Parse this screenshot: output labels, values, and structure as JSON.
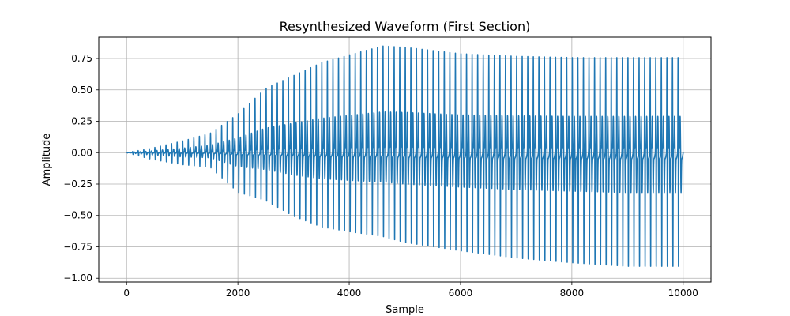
{
  "chart_data": {
    "type": "line",
    "title": "Resynthesized Waveform (First Section)",
    "xlabel": "Sample",
    "ylabel": "Amplitude",
    "xlim": [
      -500,
      10500
    ],
    "ylim": [
      -1.03,
      0.92
    ],
    "x_ticks": [
      0,
      2000,
      4000,
      6000,
      8000,
      10000
    ],
    "x_tick_labels": [
      "0",
      "2000",
      "4000",
      "6000",
      "8000",
      "10000"
    ],
    "y_ticks": [
      0.75,
      0.5,
      0.25,
      0.0,
      -0.25,
      -0.5,
      -0.75,
      -1.0
    ],
    "y_tick_labels": [
      "0.75",
      "0.50",
      "0.25",
      "0.00",
      "−0.25",
      "−0.50",
      "−0.75",
      "−1.00"
    ],
    "grid": true,
    "series": [
      {
        "color": "#1f77b4",
        "description": "oscillating waveform, ~100 samples per cycle, amplitude growing from ~0 at sample 0 to ~0.8 peak / -0.95 trough by ~5000, roughly steady afterwards",
        "sample_count": 10000,
        "cycle_length": 100,
        "envelope_points": [
          {
            "x": 0,
            "max": 0.0,
            "min": 0.0
          },
          {
            "x": 400,
            "max": 0.03,
            "min": -0.05
          },
          {
            "x": 1000,
            "max": 0.09,
            "min": -0.1
          },
          {
            "x": 1500,
            "max": 0.15,
            "min": -0.12
          },
          {
            "x": 2000,
            "max": 0.3,
            "min": -0.33
          },
          {
            "x": 2500,
            "max": 0.5,
            "min": -0.4
          },
          {
            "x": 3000,
            "max": 0.6,
            "min": -0.53
          },
          {
            "x": 3500,
            "max": 0.7,
            "min": -0.62
          },
          {
            "x": 4000,
            "max": 0.76,
            "min": -0.66
          },
          {
            "x": 4600,
            "max": 0.83,
            "min": -0.7
          },
          {
            "x": 5000,
            "max": 0.82,
            "min": -0.75
          },
          {
            "x": 6000,
            "max": 0.77,
            "min": -0.82
          },
          {
            "x": 7000,
            "max": 0.75,
            "min": -0.88
          },
          {
            "x": 8000,
            "max": 0.74,
            "min": -0.92
          },
          {
            "x": 9000,
            "max": 0.74,
            "min": -0.95
          },
          {
            "x": 10000,
            "max": 0.74,
            "min": -0.95
          }
        ]
      }
    ]
  }
}
